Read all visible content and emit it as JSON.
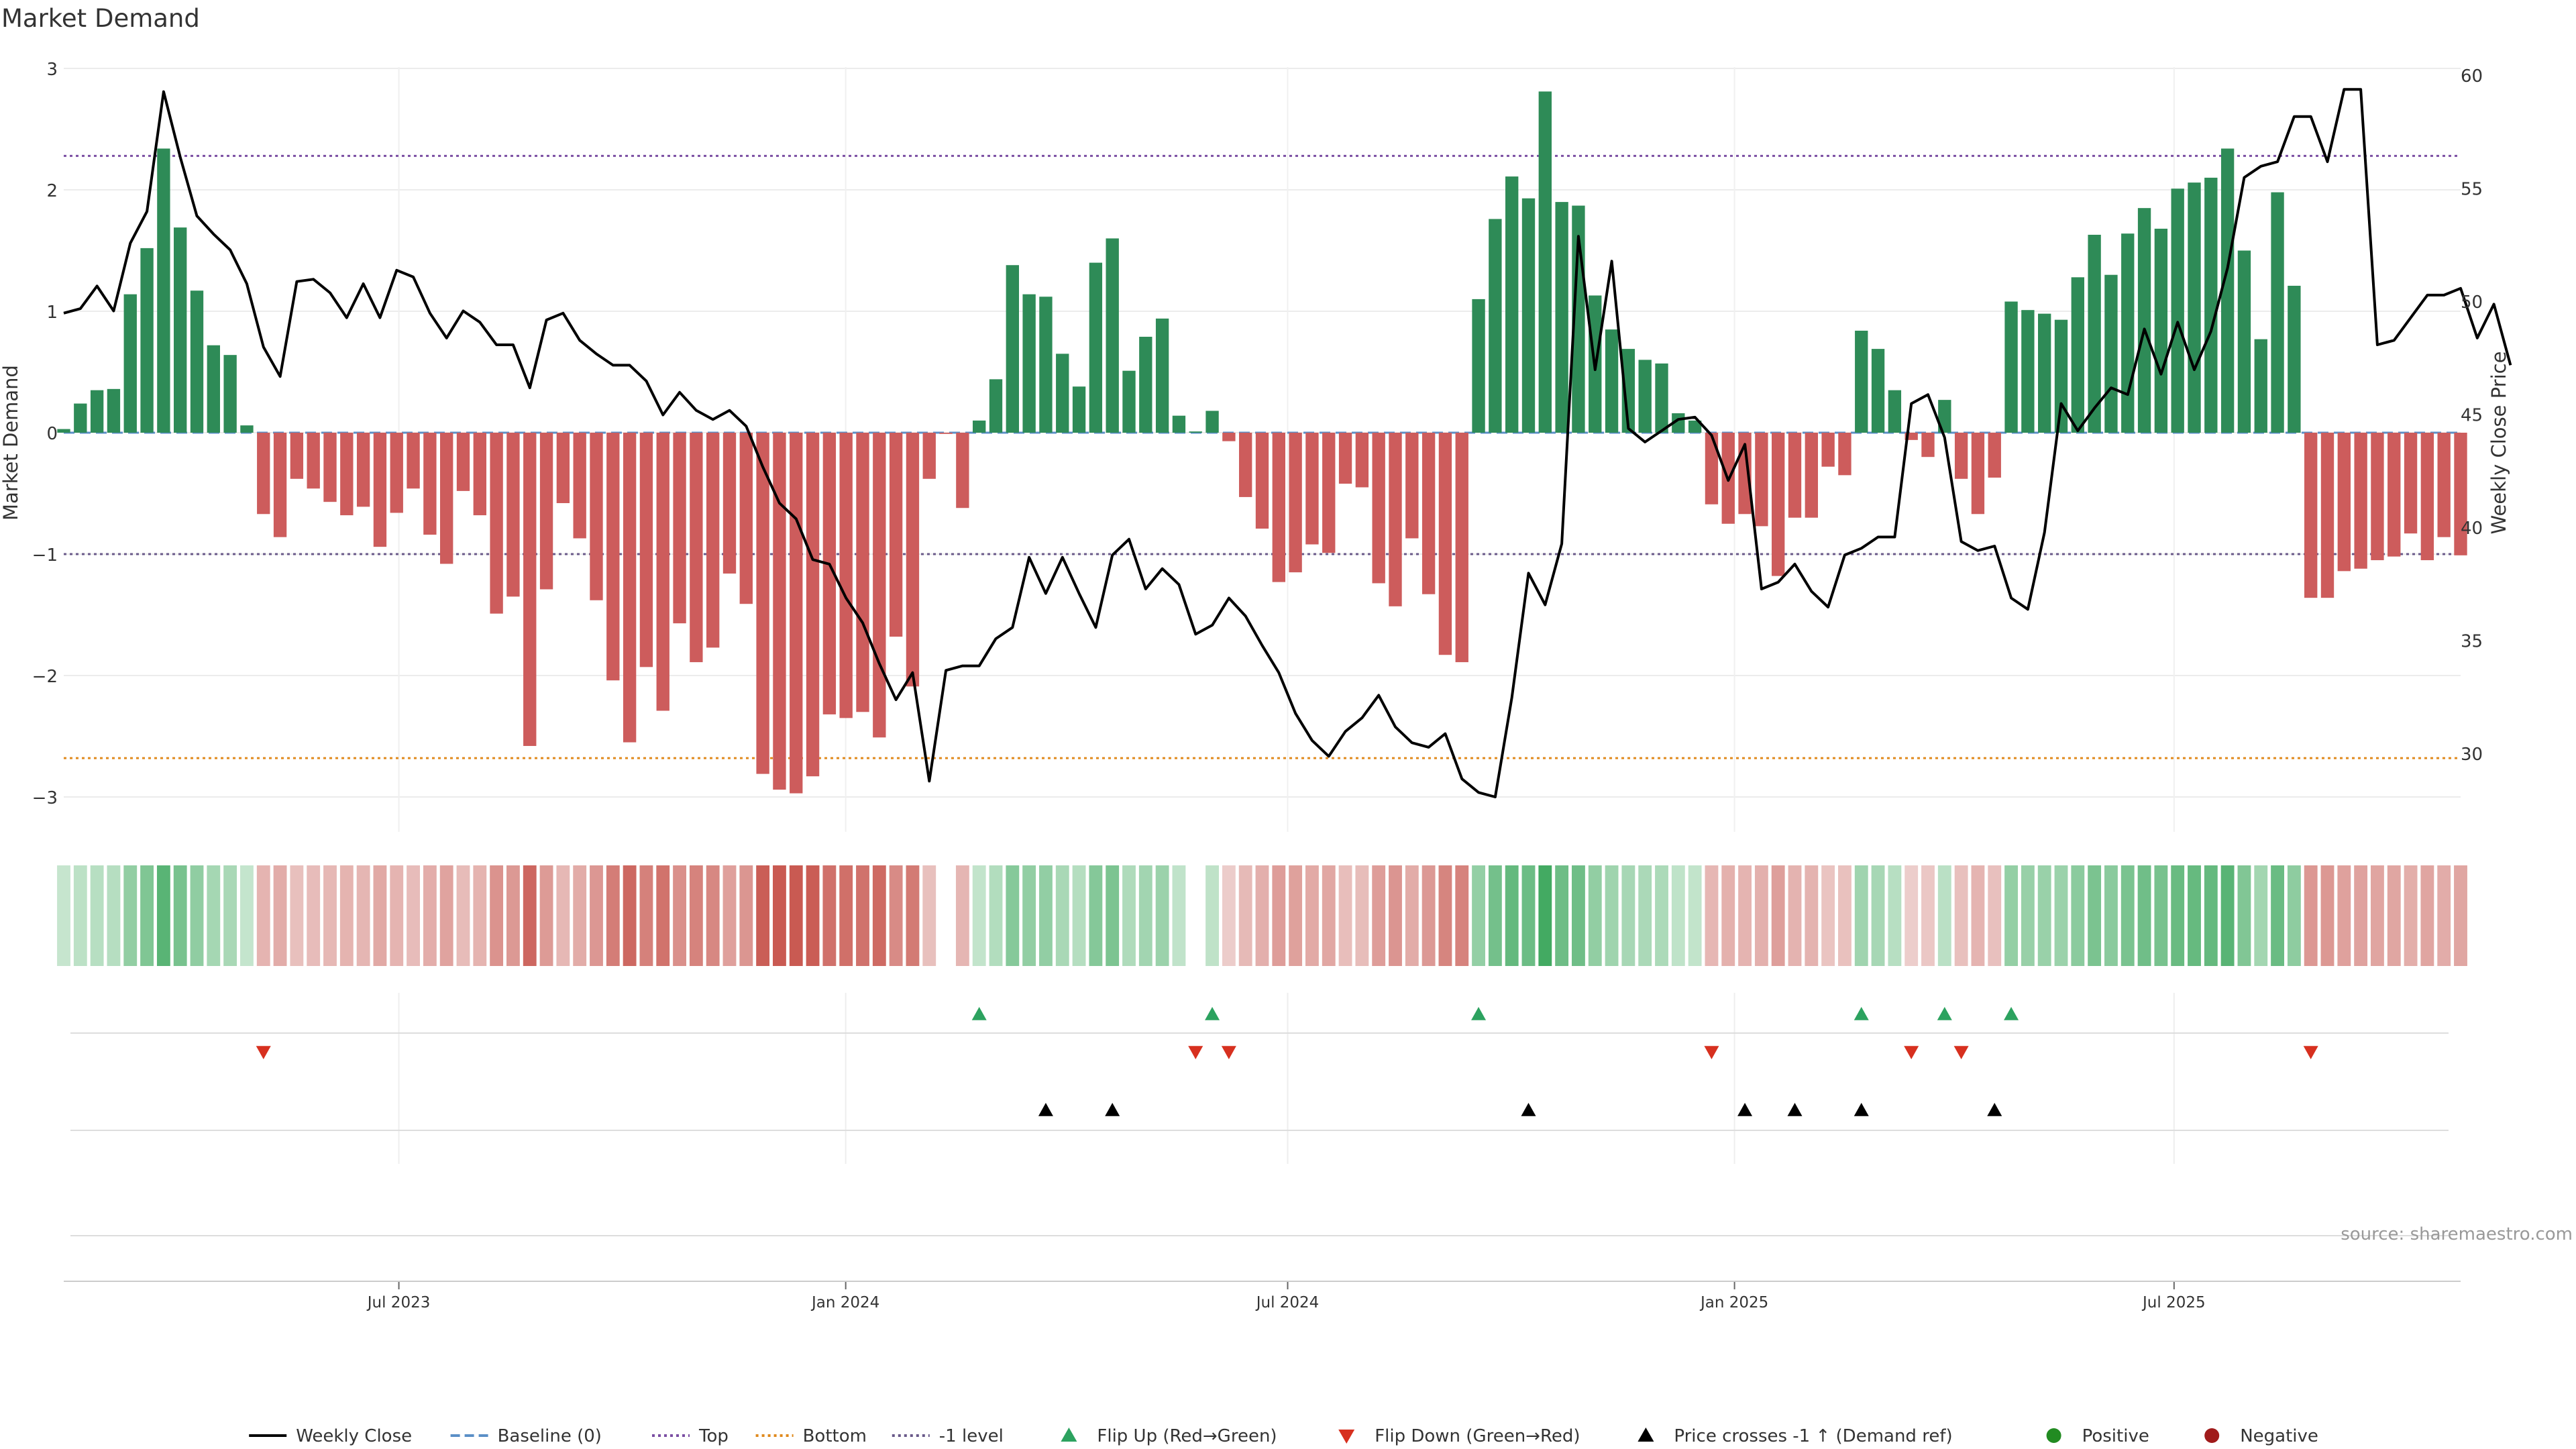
{
  "chart_data": {
    "type": "bar",
    "title": "Market Demand",
    "ylabel_left": "Market Demand",
    "ylabel_right": "Weekly Close Price",
    "xlabel": "",
    "ylim_left": [
      -3.3,
      3.0
    ],
    "ylim_right": [
      26.5,
      60.5
    ],
    "yticks_left": [
      3,
      2,
      1,
      0,
      -1,
      -2,
      -3
    ],
    "yticks_left_labels": [
      "3",
      "2",
      "1",
      "0",
      "−1",
      "−2",
      "−3"
    ],
    "yticks_right": [
      60,
      55,
      50,
      45,
      40,
      35,
      30
    ],
    "x_start": "2023-02-13",
    "x_end": "2025-10-27",
    "x_ticks": [
      {
        "date": "2023-07-01",
        "label": "Jul 2023"
      },
      {
        "date": "2024-01-01",
        "label": "Jan 2024"
      },
      {
        "date": "2024-07-01",
        "label": "Jul 2024"
      },
      {
        "date": "2025-01-01",
        "label": "Jan 2025"
      },
      {
        "date": "2025-07-01",
        "label": "Jul 2025"
      }
    ],
    "reference_lines": [
      {
        "name": "Top",
        "value": 2.28,
        "color": "#7b4fa3"
      },
      {
        "name": "Bottom",
        "value": -2.68,
        "color": "#e08a1e"
      },
      {
        "name": "-1 level",
        "value": -1.0,
        "color": "#6a5a8a"
      },
      {
        "name": "Baseline (0)",
        "value": 0.0,
        "color": "#5b8fc7"
      }
    ],
    "series": [
      {
        "name": "Market Demand",
        "values": [
          0.03,
          0.24,
          0.35,
          0.36,
          1.14,
          1.52,
          2.34,
          1.69,
          1.17,
          0.72,
          0.64,
          0.06,
          -0.67,
          -0.86,
          -0.38,
          -0.46,
          -0.57,
          -0.68,
          -0.61,
          -0.94,
          -0.66,
          -0.46,
          -0.84,
          -1.08,
          -0.48,
          -0.68,
          -1.49,
          -1.35,
          -2.58,
          -1.29,
          -0.58,
          -0.87,
          -1.38,
          -2.04,
          -2.55,
          -1.93,
          -2.29,
          -1.57,
          -1.89,
          -1.77,
          -1.16,
          -1.41,
          -2.81,
          -2.94,
          -2.97,
          -2.83,
          -2.32,
          -2.35,
          -2.3,
          -2.51,
          -1.68,
          -2.09,
          -0.38,
          -0.01,
          -0.62,
          0.1,
          0.44,
          1.38,
          1.14,
          1.12,
          0.65,
          0.38,
          1.4,
          1.6,
          0.51,
          0.79,
          0.94,
          0.14,
          0.01,
          0.18,
          -0.07,
          -0.53,
          -0.79,
          -1.23,
          -1.15,
          -0.92,
          -0.99,
          -0.42,
          -0.45,
          -1.24,
          -1.43,
          -0.87,
          -1.33,
          -1.83,
          -1.89,
          1.1,
          1.76,
          2.11,
          1.93,
          2.81,
          1.9,
          1.87,
          1.13,
          0.85,
          0.69,
          0.6,
          0.57,
          0.16,
          0.1,
          -0.59,
          -0.75,
          -0.67,
          -0.77,
          -1.18,
          -0.7,
          -0.7,
          -0.28,
          -0.35,
          0.84,
          0.69,
          0.35,
          -0.06,
          -0.2,
          0.27,
          -0.38,
          -0.67,
          -0.37,
          1.08,
          1.01,
          0.98,
          0.93,
          1.28,
          1.63,
          1.3,
          1.64,
          1.85,
          1.68,
          2.01,
          2.06,
          2.1,
          2.34,
          1.5,
          0.77,
          1.98,
          1.21,
          -1.36,
          -1.36,
          -1.14,
          -1.12,
          -1.05,
          -1.02,
          -0.83,
          -1.05,
          -0.86,
          -1.01
        ]
      },
      {
        "name": "Weekly Close",
        "values": [
          49.5,
          49.7,
          50.7,
          49.6,
          52.6,
          54.0,
          59.3,
          56.4,
          53.8,
          53.0,
          52.3,
          50.8,
          48.0,
          46.7,
          50.9,
          51.0,
          50.4,
          49.3,
          50.8,
          49.3,
          51.4,
          51.1,
          49.5,
          48.4,
          49.6,
          49.1,
          48.1,
          48.1,
          46.2,
          49.2,
          49.5,
          48.3,
          47.7,
          47.2,
          47.2,
          46.5,
          45.0,
          46.0,
          45.2,
          44.8,
          45.2,
          44.5,
          42.7,
          41.1,
          40.4,
          38.6,
          38.4,
          36.9,
          35.8,
          34.0,
          32.4,
          33.6,
          28.8,
          33.7,
          33.9,
          33.9,
          35.1,
          35.6,
          38.7,
          37.1,
          38.7,
          37.1,
          35.6,
          38.8,
          39.5,
          37.3,
          38.2,
          37.5,
          35.3,
          35.7,
          36.9,
          36.1,
          34.8,
          33.6,
          31.8,
          30.6,
          29.9,
          31.0,
          31.6,
          32.6,
          31.2,
          30.5,
          30.3,
          30.9,
          28.9,
          28.3,
          28.1,
          32.5,
          38.0,
          36.6,
          39.3,
          52.9,
          47.0,
          51.8,
          44.4,
          43.8,
          44.3,
          44.8,
          44.9,
          44.1,
          42.1,
          43.7,
          37.3,
          37.6,
          38.4,
          37.2,
          36.5,
          38.8,
          39.1,
          39.6,
          39.6,
          45.5,
          45.9,
          44.0,
          39.4,
          39.0,
          39.2,
          36.9,
          36.4,
          39.8,
          45.5,
          44.3,
          45.3,
          46.2,
          45.9,
          48.8,
          46.8,
          49.1,
          47.0,
          48.7,
          51.5,
          55.5,
          56.0,
          56.2,
          58.2,
          58.2,
          56.2,
          59.4,
          59.4,
          48.1,
          48.3,
          49.3,
          50.3,
          50.3,
          50.6,
          48.4,
          49.9,
          47.2
        ]
      }
    ],
    "flip_up_weeks": [
      55,
      69,
      85,
      108,
      113,
      117
    ],
    "flip_down_weeks": [
      12,
      68,
      70,
      99,
      111,
      114,
      135
    ],
    "price_cross_weeks": [
      59,
      63,
      88,
      101,
      104,
      108,
      116
    ]
  },
  "legend": {
    "items": [
      {
        "label": "Weekly Close",
        "kind": "line",
        "color": "#000000"
      },
      {
        "label": "Baseline (0)",
        "kind": "dash",
        "color": "#5b8fc7"
      },
      {
        "label": "Top",
        "kind": "dot",
        "color": "#7b4fa3"
      },
      {
        "label": "Bottom",
        "kind": "dot",
        "color": "#e08a1e"
      },
      {
        "label": "-1 level",
        "kind": "dot",
        "color": "#6a5a8a"
      },
      {
        "label": "Flip Up (Red→Green)",
        "kind": "tri-up",
        "color": "#2ca25f"
      },
      {
        "label": "Flip Down (Green→Red)",
        "kind": "tri-down",
        "color": "#d7301f"
      },
      {
        "label": "Price crosses -1 ↑ (Demand ref)",
        "kind": "tri-up",
        "color": "#000000"
      },
      {
        "label": "Positive",
        "kind": "circle",
        "color": "#228b22"
      },
      {
        "label": "Negative",
        "kind": "circle",
        "color": "#a01b1b"
      }
    ]
  },
  "source": "source: sharemaestro.com",
  "colors": {
    "bar_positive": "#2e8b57",
    "bar_negative": "#cd5c5c",
    "flip_up": "#2ca25f",
    "flip_down": "#d7301f",
    "price_line": "#000000"
  }
}
